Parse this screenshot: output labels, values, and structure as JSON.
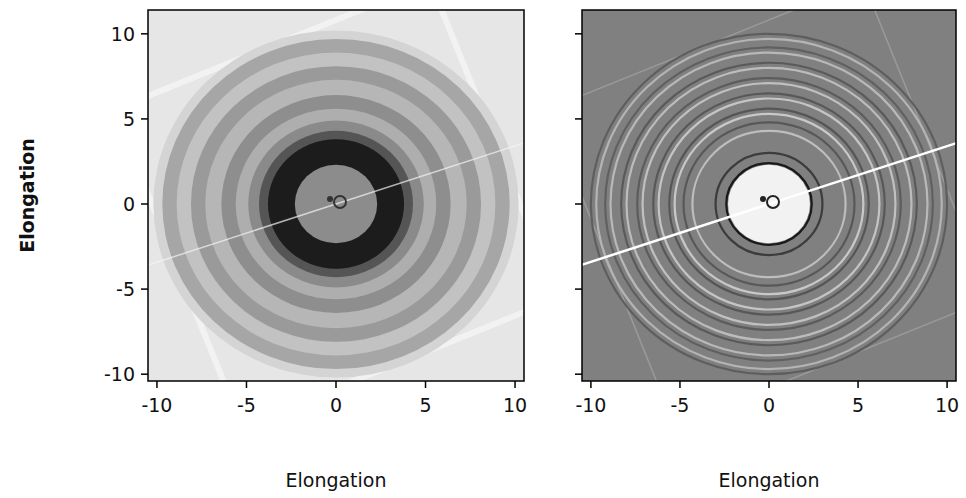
{
  "chart_data": [
    {
      "type": "image",
      "xlabel": "Elongation",
      "ylabel": "Elongation",
      "xlim": [
        -10.5,
        10.5
      ],
      "ylim": [
        -10.4,
        11.4
      ],
      "xticks": [
        -10,
        -5,
        0,
        5,
        10
      ],
      "yticks": [
        -10,
        -5,
        0,
        5,
        10
      ],
      "color": "#e6e6e6",
      "rings": [
        {
          "radius": 10.2,
          "color": "#d4d4d4"
        },
        {
          "radius": 9.7,
          "color": "#a6a6a6"
        },
        {
          "radius": 8.9,
          "color": "#c2c2c2"
        },
        {
          "radius": 8.1,
          "color": "#9a9a9a"
        },
        {
          "radius": 7.3,
          "color": "#b6b6b6"
        },
        {
          "radius": 6.4,
          "color": "#8e8e8e"
        },
        {
          "radius": 5.6,
          "color": "#aeaeae"
        },
        {
          "radius": 4.9,
          "color": "#8a8a8a"
        },
        {
          "radius": 4.3,
          "color": "#555555"
        },
        {
          "radius": 3.8,
          "color": "#1c1c1c"
        },
        {
          "radius": 2.3,
          "color": "#8c8c8c"
        }
      ]
    },
    {
      "type": "edge",
      "xlabel": "Elongation",
      "xlim": [
        -10.5,
        10.5
      ],
      "ylim": [
        -10.4,
        11.4
      ],
      "xticks": [
        -10,
        -5,
        0,
        5,
        10
      ],
      "yticks": [
        -10,
        -5,
        0,
        5,
        10
      ],
      "tick_labels": "x",
      "color": "#808080",
      "rings": [
        {
          "radius": 10.0,
          "color": "#5e5e5e"
        },
        {
          "radius": 9.7,
          "color": "#b4b4b4"
        },
        {
          "radius": 9.2,
          "color": "#606060"
        },
        {
          "radius": 8.9,
          "color": "#b8b8b8"
        },
        {
          "radius": 8.3,
          "color": "#5a5a5a"
        },
        {
          "radius": 8.0,
          "color": "#bcbcbc"
        },
        {
          "radius": 7.4,
          "color": "#5c5c5c"
        },
        {
          "radius": 7.1,
          "color": "#c0c0c0"
        },
        {
          "radius": 6.5,
          "color": "#585858"
        },
        {
          "radius": 6.2,
          "color": "#c4c4c4"
        },
        {
          "radius": 5.6,
          "color": "#565656"
        },
        {
          "radius": 5.3,
          "color": "#c8c8c8"
        },
        {
          "radius": 4.8,
          "color": "#585858"
        },
        {
          "radius": 4.3,
          "color": "#bdbdbd"
        },
        {
          "radius": 3.0,
          "color": "#3c3c3c"
        },
        {
          "radius": 2.4,
          "color": "#1a1a1a"
        },
        {
          "radius": 2.3,
          "color": "#f2f2f2"
        }
      ]
    }
  ]
}
